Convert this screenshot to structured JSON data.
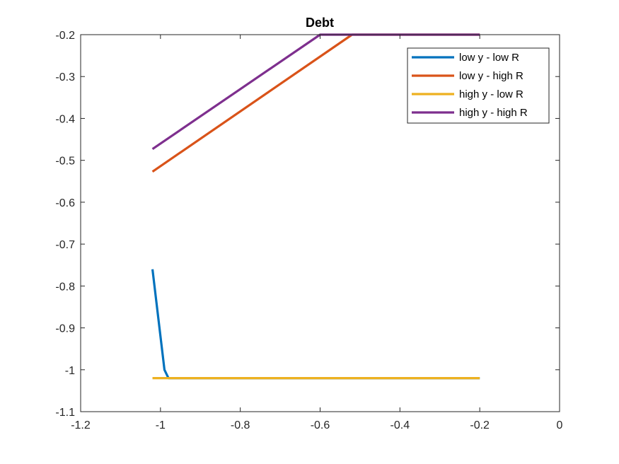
{
  "chart_data": {
    "type": "line",
    "title": "Debt",
    "xlabel": "",
    "ylabel": "",
    "xlim": [
      -1.2,
      0
    ],
    "ylim": [
      -1.1,
      -0.2
    ],
    "xticks": [
      -1.2,
      -1,
      -0.8,
      -0.6,
      -0.4,
      -0.2,
      0
    ],
    "xtick_labels": [
      "-1.2",
      "-1",
      "-0.8",
      "-0.6",
      "-0.4",
      "-0.2",
      "0"
    ],
    "yticks": [
      -1.1,
      -1,
      -0.9,
      -0.8,
      -0.7,
      -0.6,
      -0.5,
      -0.4,
      -0.3,
      -0.2
    ],
    "ytick_labels": [
      "-1.1",
      "-1",
      "-0.9",
      "-0.8",
      "-0.7",
      "-0.6",
      "-0.5",
      "-0.4",
      "-0.3",
      "-0.2"
    ],
    "grid": false,
    "legend_position": "top-right",
    "series": [
      {
        "name": "low y - low R",
        "color": "#0072BD",
        "x": [
          -1.02,
          -1.01,
          -1.0,
          -0.99,
          -0.98,
          -0.2
        ],
        "y": [
          -0.76,
          -0.84,
          -0.92,
          -1.0,
          -1.02,
          -1.02
        ]
      },
      {
        "name": "low y - high R",
        "color": "#D95319",
        "x": [
          -1.02,
          -0.52,
          -0.2
        ],
        "y": [
          -0.527,
          -0.2,
          -0.2
        ]
      },
      {
        "name": "high y - low R",
        "color": "#EDB120",
        "x": [
          -1.02,
          -0.2
        ],
        "y": [
          -1.02,
          -1.02
        ]
      },
      {
        "name": "high y - high R",
        "color": "#7E2F8E",
        "x": [
          -1.02,
          -0.6,
          -0.2
        ],
        "y": [
          -0.473,
          -0.2,
          -0.2
        ]
      }
    ]
  }
}
